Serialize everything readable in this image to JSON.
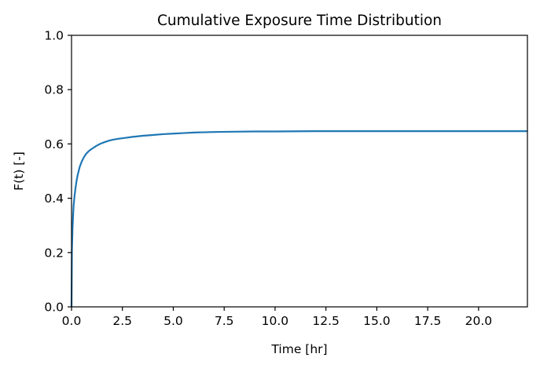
{
  "chart_data": {
    "type": "line",
    "title": "Cumulative Exposure Time Distribution",
    "xlabel": "Time [hr]",
    "ylabel": "F(t) [-]",
    "xlim": [
      0,
      22.4
    ],
    "ylim": [
      0,
      1.0
    ],
    "xticks": [
      "0.0",
      "2.5",
      "5.0",
      "7.5",
      "10.0",
      "12.5",
      "15.0",
      "17.5",
      "20.0"
    ],
    "yticks": [
      "0.0",
      "0.2",
      "0.4",
      "0.6",
      "0.8",
      "1.0"
    ],
    "grid": false,
    "legend": "none",
    "line_color": "#1f77b4",
    "series": [
      {
        "x": [
          0,
          0.02,
          0.05,
          0.08,
          0.1,
          0.15,
          0.2,
          0.25,
          0.3,
          0.4,
          0.5,
          0.6,
          0.7,
          0.8,
          0.9,
          1.0,
          1.2,
          1.4,
          1.6,
          1.8,
          2.0,
          2.3,
          2.6,
          3.0,
          3.5,
          4.0,
          4.5,
          5.0,
          5.5,
          6.0,
          7.0,
          8.0,
          9.0,
          10.0,
          12.0,
          15.0,
          18.0,
          20.0,
          22.4
        ],
        "y": [
          0,
          0.21,
          0.29,
          0.34,
          0.37,
          0.41,
          0.44,
          0.465,
          0.485,
          0.515,
          0.535,
          0.55,
          0.562,
          0.57,
          0.577,
          0.582,
          0.592,
          0.6,
          0.606,
          0.611,
          0.615,
          0.619,
          0.622,
          0.626,
          0.63,
          0.633,
          0.636,
          0.638,
          0.64,
          0.642,
          0.644,
          0.645,
          0.646,
          0.646,
          0.647,
          0.647,
          0.647,
          0.647,
          0.647
        ]
      }
    ]
  }
}
